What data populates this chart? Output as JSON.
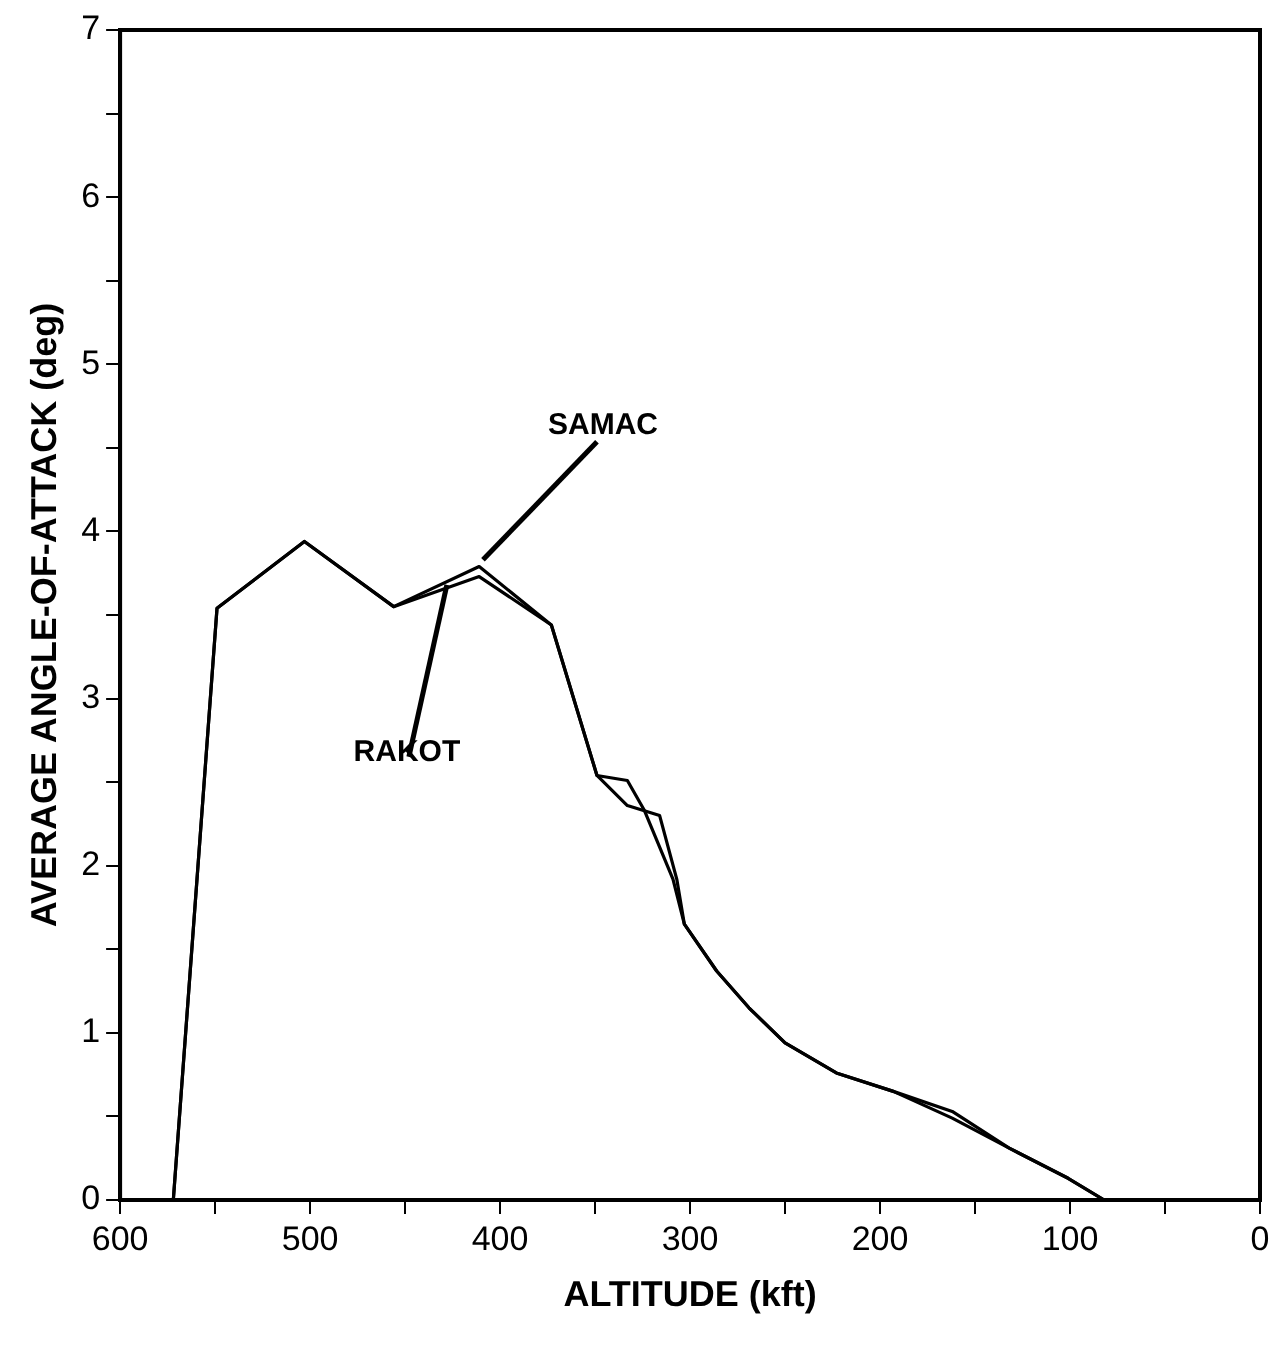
{
  "chart_data": {
    "type": "line",
    "xlabel": "ALTITUDE (kft)",
    "ylabel": "AVERAGE ANGLE-OF-ATTACK (deg)",
    "xlim": [
      600,
      0
    ],
    "xticks": [
      600,
      {
        "value": 550,
        "label": null
      },
      500,
      {
        "value": 450,
        "label": null
      },
      400,
      {
        "value": 350,
        "label": null
      },
      300,
      {
        "value": 250,
        "label": null
      },
      200,
      {
        "value": 150,
        "label": null
      },
      100,
      {
        "value": 50,
        "label": null
      },
      0
    ],
    "ylim": [
      0,
      7
    ],
    "yticks": [
      0,
      {
        "value": 0.5,
        "label": null
      },
      1,
      {
        "value": 1.5,
        "label": null
      },
      2,
      {
        "value": 2.5,
        "label": null
      },
      3,
      {
        "value": 3.5,
        "label": null
      },
      4,
      {
        "value": 4.5,
        "label": null
      },
      5,
      {
        "value": 5.5,
        "label": null
      },
      6,
      {
        "value": 6.5,
        "label": null
      },
      7
    ],
    "grid": false,
    "legend": false,
    "marker": "none",
    "line_style": "solid",
    "series": [
      {
        "color": "#000000",
        "x": [
          572,
          549,
          503,
          456,
          411,
          373,
          349,
          333,
          324,
          309,
          303,
          286,
          269,
          250,
          223,
          193,
          162,
          132,
          101,
          82,
          60
        ],
        "values": [
          0,
          3.54,
          3.94,
          3.55,
          3.79,
          3.44,
          2.54,
          2.51,
          2.33,
          1.92,
          1.65,
          1.37,
          1.15,
          0.94,
          0.76,
          0.65,
          0.53,
          0.31,
          0.13,
          0,
          0
        ]
      },
      {
        "color": "#000000",
        "x": [
          572,
          549,
          503,
          456,
          411,
          373,
          349,
          333,
          316,
          307,
          303,
          286,
          269,
          250,
          223,
          193,
          162,
          132,
          101,
          82,
          60
        ],
        "values": [
          0,
          3.54,
          3.94,
          3.55,
          3.73,
          3.44,
          2.54,
          2.36,
          2.3,
          1.92,
          1.65,
          1.37,
          1.15,
          0.94,
          0.76,
          0.65,
          0.49,
          0.31,
          0.13,
          0,
          0
        ]
      }
    ],
    "annotations": [
      {
        "text": "SAMAC",
        "x": 409,
        "y": 3.83
      },
      {
        "text": "RAKOT",
        "x": 428,
        "y": 3.68
      }
    ]
  }
}
